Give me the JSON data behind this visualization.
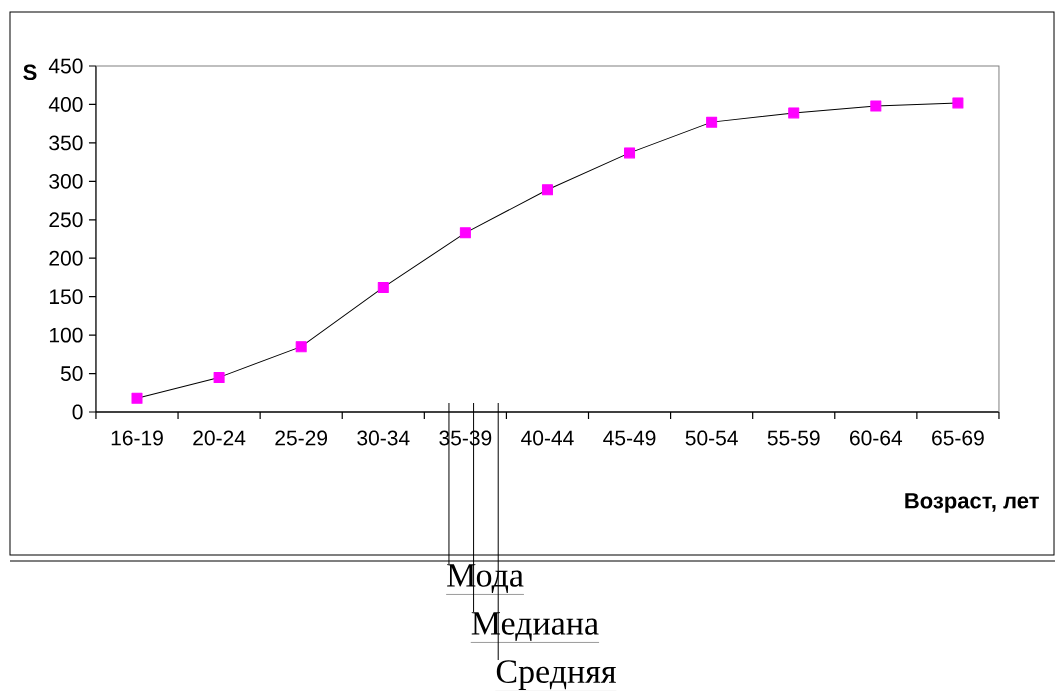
{
  "chart_data": {
    "type": "line",
    "xlabel": "Возраст, лет",
    "ylabel": "S",
    "categories": [
      "16-19",
      "20-24",
      "25-29",
      "30-34",
      "35-39",
      "40-44",
      "45-49",
      "50-54",
      "55-59",
      "60-64",
      "65-69"
    ],
    "series": [
      {
        "color": "#ff00ff",
        "values": [
          18,
          45,
          85,
          162,
          233,
          289,
          337,
          377,
          389,
          398,
          402
        ]
      }
    ],
    "ylim": [
      0,
      450
    ],
    "yticks": [
      0,
      50,
      100,
      150,
      200,
      250,
      300,
      350,
      400,
      450
    ],
    "marker": "square",
    "line_style": "solid",
    "annotations": [
      "Мода",
      "Медиана",
      "Средняя"
    ]
  }
}
